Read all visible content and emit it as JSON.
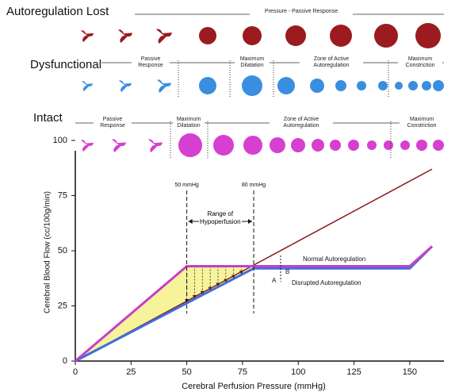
{
  "panels": [
    {
      "title": "Autoregulation Lost",
      "zones": [
        "Pressure - Passive Response"
      ]
    },
    {
      "title": "Dysfunctional",
      "zones": [
        "Passive Response",
        "Maximum Dilatation",
        "Zone of Active Autoregulation",
        "Maximum Constriction"
      ]
    },
    {
      "title": "Intact",
      "zones": [
        "Passive Response",
        "Maximum Dilatation",
        "Zone of Active Autoregulation",
        "Maximum Constriction"
      ]
    }
  ],
  "chart_data": {
    "type": "line",
    "xlabel": "Cerebral Perfusion Pressure (mmHg)",
    "ylabel": "Cerebral Blood Flow (cc/100g/min)",
    "xlim": [
      0,
      160
    ],
    "ylim": [
      0,
      100
    ],
    "xticks": [
      0,
      25,
      50,
      75,
      100,
      125,
      150
    ],
    "yticks": [
      0,
      25,
      50,
      75,
      100
    ],
    "series": [
      {
        "color": "#8b1a1a",
        "x": [
          0,
          160
        ],
        "values": [
          0,
          87
        ]
      },
      {
        "name": "Disrupted Autoregulation",
        "color": "#3f6fe0",
        "x": [
          0,
          80,
          150,
          160
        ],
        "values": [
          0,
          42,
          42,
          52
        ]
      },
      {
        "name": "Normal Autoregulation",
        "color": "#c63fc8",
        "x": [
          0,
          50,
          150,
          160
        ],
        "values": [
          0,
          43,
          43,
          52
        ]
      }
    ],
    "fill_color": "#f7f39a",
    "markers": [
      {
        "x": 50,
        "label": "50 mmHg"
      },
      {
        "x": 80,
        "label": "80 mmHg"
      }
    ],
    "annotations": [
      "Range of Hypoperfusion",
      "A",
      "B"
    ]
  }
}
